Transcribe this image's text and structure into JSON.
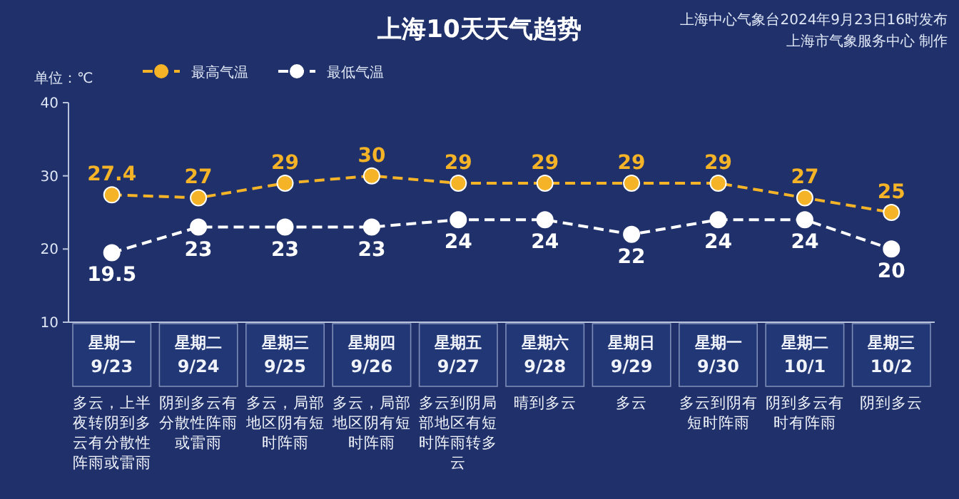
{
  "chart_data": {
    "type": "line",
    "title": "上海10天天气趋势",
    "ylabel": "单位：℃",
    "annotations": [
      "上海中心气象台2024年9月23日16时发布",
      "上海市气象服务中心 制作",
      "多云，上半夜转阴到多云有分散性阵雨或雷雨",
      "阴到多云有分散性阵雨或雷雨",
      "多云，局部地区阴有短时阵雨",
      "多云，局部地区阴有短时阵雨",
      "多云到阴局部地区有短时阵雨转多云",
      "晴到多云",
      "多云",
      "多云到阴有短时阵雨",
      "阴到多云有时有阵雨",
      "阴到多云"
    ],
    "categories": [
      "星期一 9/23",
      "星期二 9/24",
      "星期三 9/25",
      "星期四 9/26",
      "星期五 9/27",
      "星期六 9/28",
      "星期日 9/29",
      "星期一 9/30",
      "星期二 10/1",
      "星期三 10/2"
    ],
    "series": [
      {
        "name": "最高气温",
        "color": "#f5b327",
        "values": [
          27.4,
          27,
          29,
          30,
          29,
          29,
          29,
          29,
          27,
          25
        ]
      },
      {
        "name": "最低气温",
        "color": "#ffffff",
        "values": [
          19.5,
          23,
          23,
          23,
          24,
          24,
          22,
          24,
          24,
          20
        ]
      }
    ],
    "ylim": [
      10,
      40
    ],
    "yticks": [
      10,
      20,
      30,
      40
    ],
    "legend": "top left",
    "marker": "circle",
    "line_style": "dashed",
    "data_labels": true
  }
}
